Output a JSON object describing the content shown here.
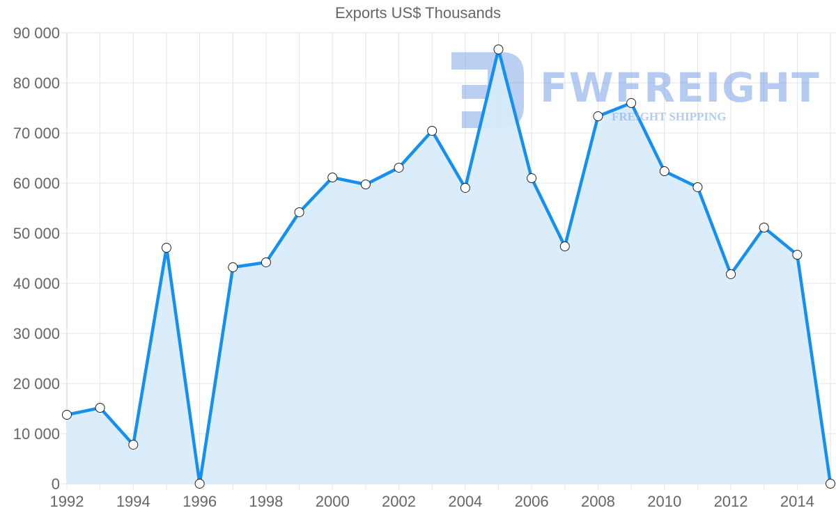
{
  "chart_data": {
    "type": "area",
    "title": "Exports US$ Thousands",
    "xlabel": "",
    "ylabel": "",
    "ylim": [
      0,
      90000
    ],
    "yticks": [
      0,
      10000,
      20000,
      30000,
      40000,
      50000,
      60000,
      70000,
      80000,
      90000
    ],
    "ytick_labels": [
      "0",
      "10 000",
      "20 000",
      "30 000",
      "40 000",
      "50 000",
      "60 000",
      "70 000",
      "80 000",
      "90 000"
    ],
    "xtick_labels": [
      "1992",
      "1994",
      "1996",
      "1998",
      "2000",
      "2002",
      "2004",
      "2006",
      "2008",
      "2010",
      "2012",
      "2014"
    ],
    "grid": true,
    "legend": null,
    "x": [
      1992,
      1993,
      1994,
      1995,
      1996,
      1997,
      1998,
      1999,
      2000,
      2001,
      2002,
      2003,
      2004,
      2005,
      2006,
      2007,
      2008,
      2009,
      2010,
      2011,
      2012,
      2013,
      2014,
      2015
    ],
    "series": [
      {
        "name": "Exports",
        "values": [
          13750,
          15140,
          7780,
          47080,
          0,
          43190,
          44170,
          54170,
          61110,
          59720,
          63060,
          70420,
          59030,
          86670,
          60970,
          47360,
          73330,
          75970,
          62360,
          59170,
          41810,
          51110,
          45690,
          0
        ]
      }
    ],
    "colors": {
      "line": "#158ff0",
      "fill": "#d7ebfb",
      "grid": "#e3e3e3",
      "text": "#666666"
    }
  },
  "watermark": {
    "brand": "FWFREIGHT",
    "tagline": "FREIGHT SHIPPING"
  }
}
